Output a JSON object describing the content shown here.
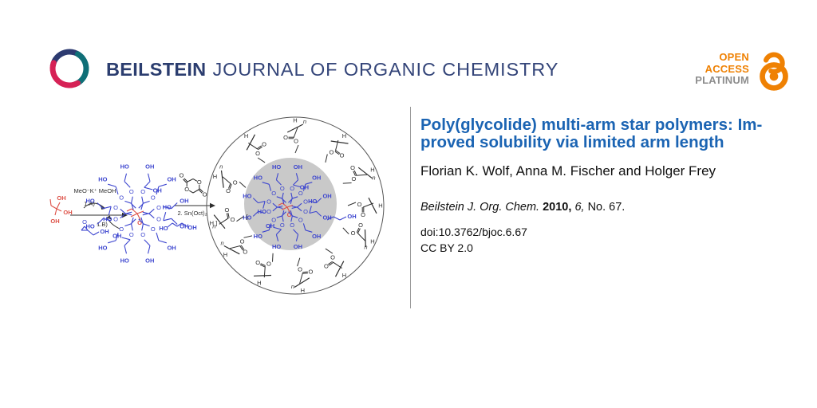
{
  "header": {
    "brand_bold": "BEILSTEIN",
    "brand_rest": "JOURNAL OF ORGANIC CHEMISTRY",
    "open_access": {
      "line1": "OPEN",
      "line2": "ACCESS",
      "line3": "PLATINUM"
    }
  },
  "article": {
    "title_line1": "Poly(glycolide) multi-arm star polymers: Im-",
    "title_line2": "proved solubility via limited arm length",
    "authors": "Florian K. Wolf, Anna M. Fischer and Holger Frey",
    "citation": {
      "journal": "Beilstein J. Org. Chem. ",
      "year": "2010, ",
      "volume": "6, ",
      "pages": "No. 67."
    },
    "doi": "doi:10.3762/bjoc.6.67",
    "license": "CC BY 2.0"
  },
  "figure": {
    "description": "Reaction scheme: trimethylolpropane triol core (red) + glycidol under MeO-K+/MeOH (steps 1.A and 1.B) gives a hyperbranched polyglycerol (blue); then glycolide with Sn(Oct)2 (step 2) gives a multi-arm poly(glycolide) star polymer drawn as a sphere with a gray core and radiating arms.",
    "reagents": {
      "methoxide": "MeO⁻K⁺ MeOH",
      "step_a": "1.A)",
      "step_b": "1.B)",
      "step2": "2. Sn(Oct)₂"
    },
    "atom_labels": {
      "O": "O",
      "HO": "HO",
      "OH": "OH",
      "H": "H",
      "n": "n",
      "bracket_open": "[",
      "bracket_close": "]"
    },
    "colors": {
      "blue": "#3c45cf",
      "red": "#dd4f45",
      "black": "#2e2e2e",
      "sphere": "#c9c9c9",
      "ring": "#555555"
    },
    "dendrimer_branch_angles": [
      15,
      45,
      75,
      105,
      135,
      165,
      195,
      225,
      255,
      285,
      315,
      345
    ],
    "arm_angles": [
      0,
      -25,
      -55,
      -90,
      -125,
      -160,
      168,
      145,
      115,
      85,
      55,
      25
    ]
  }
}
